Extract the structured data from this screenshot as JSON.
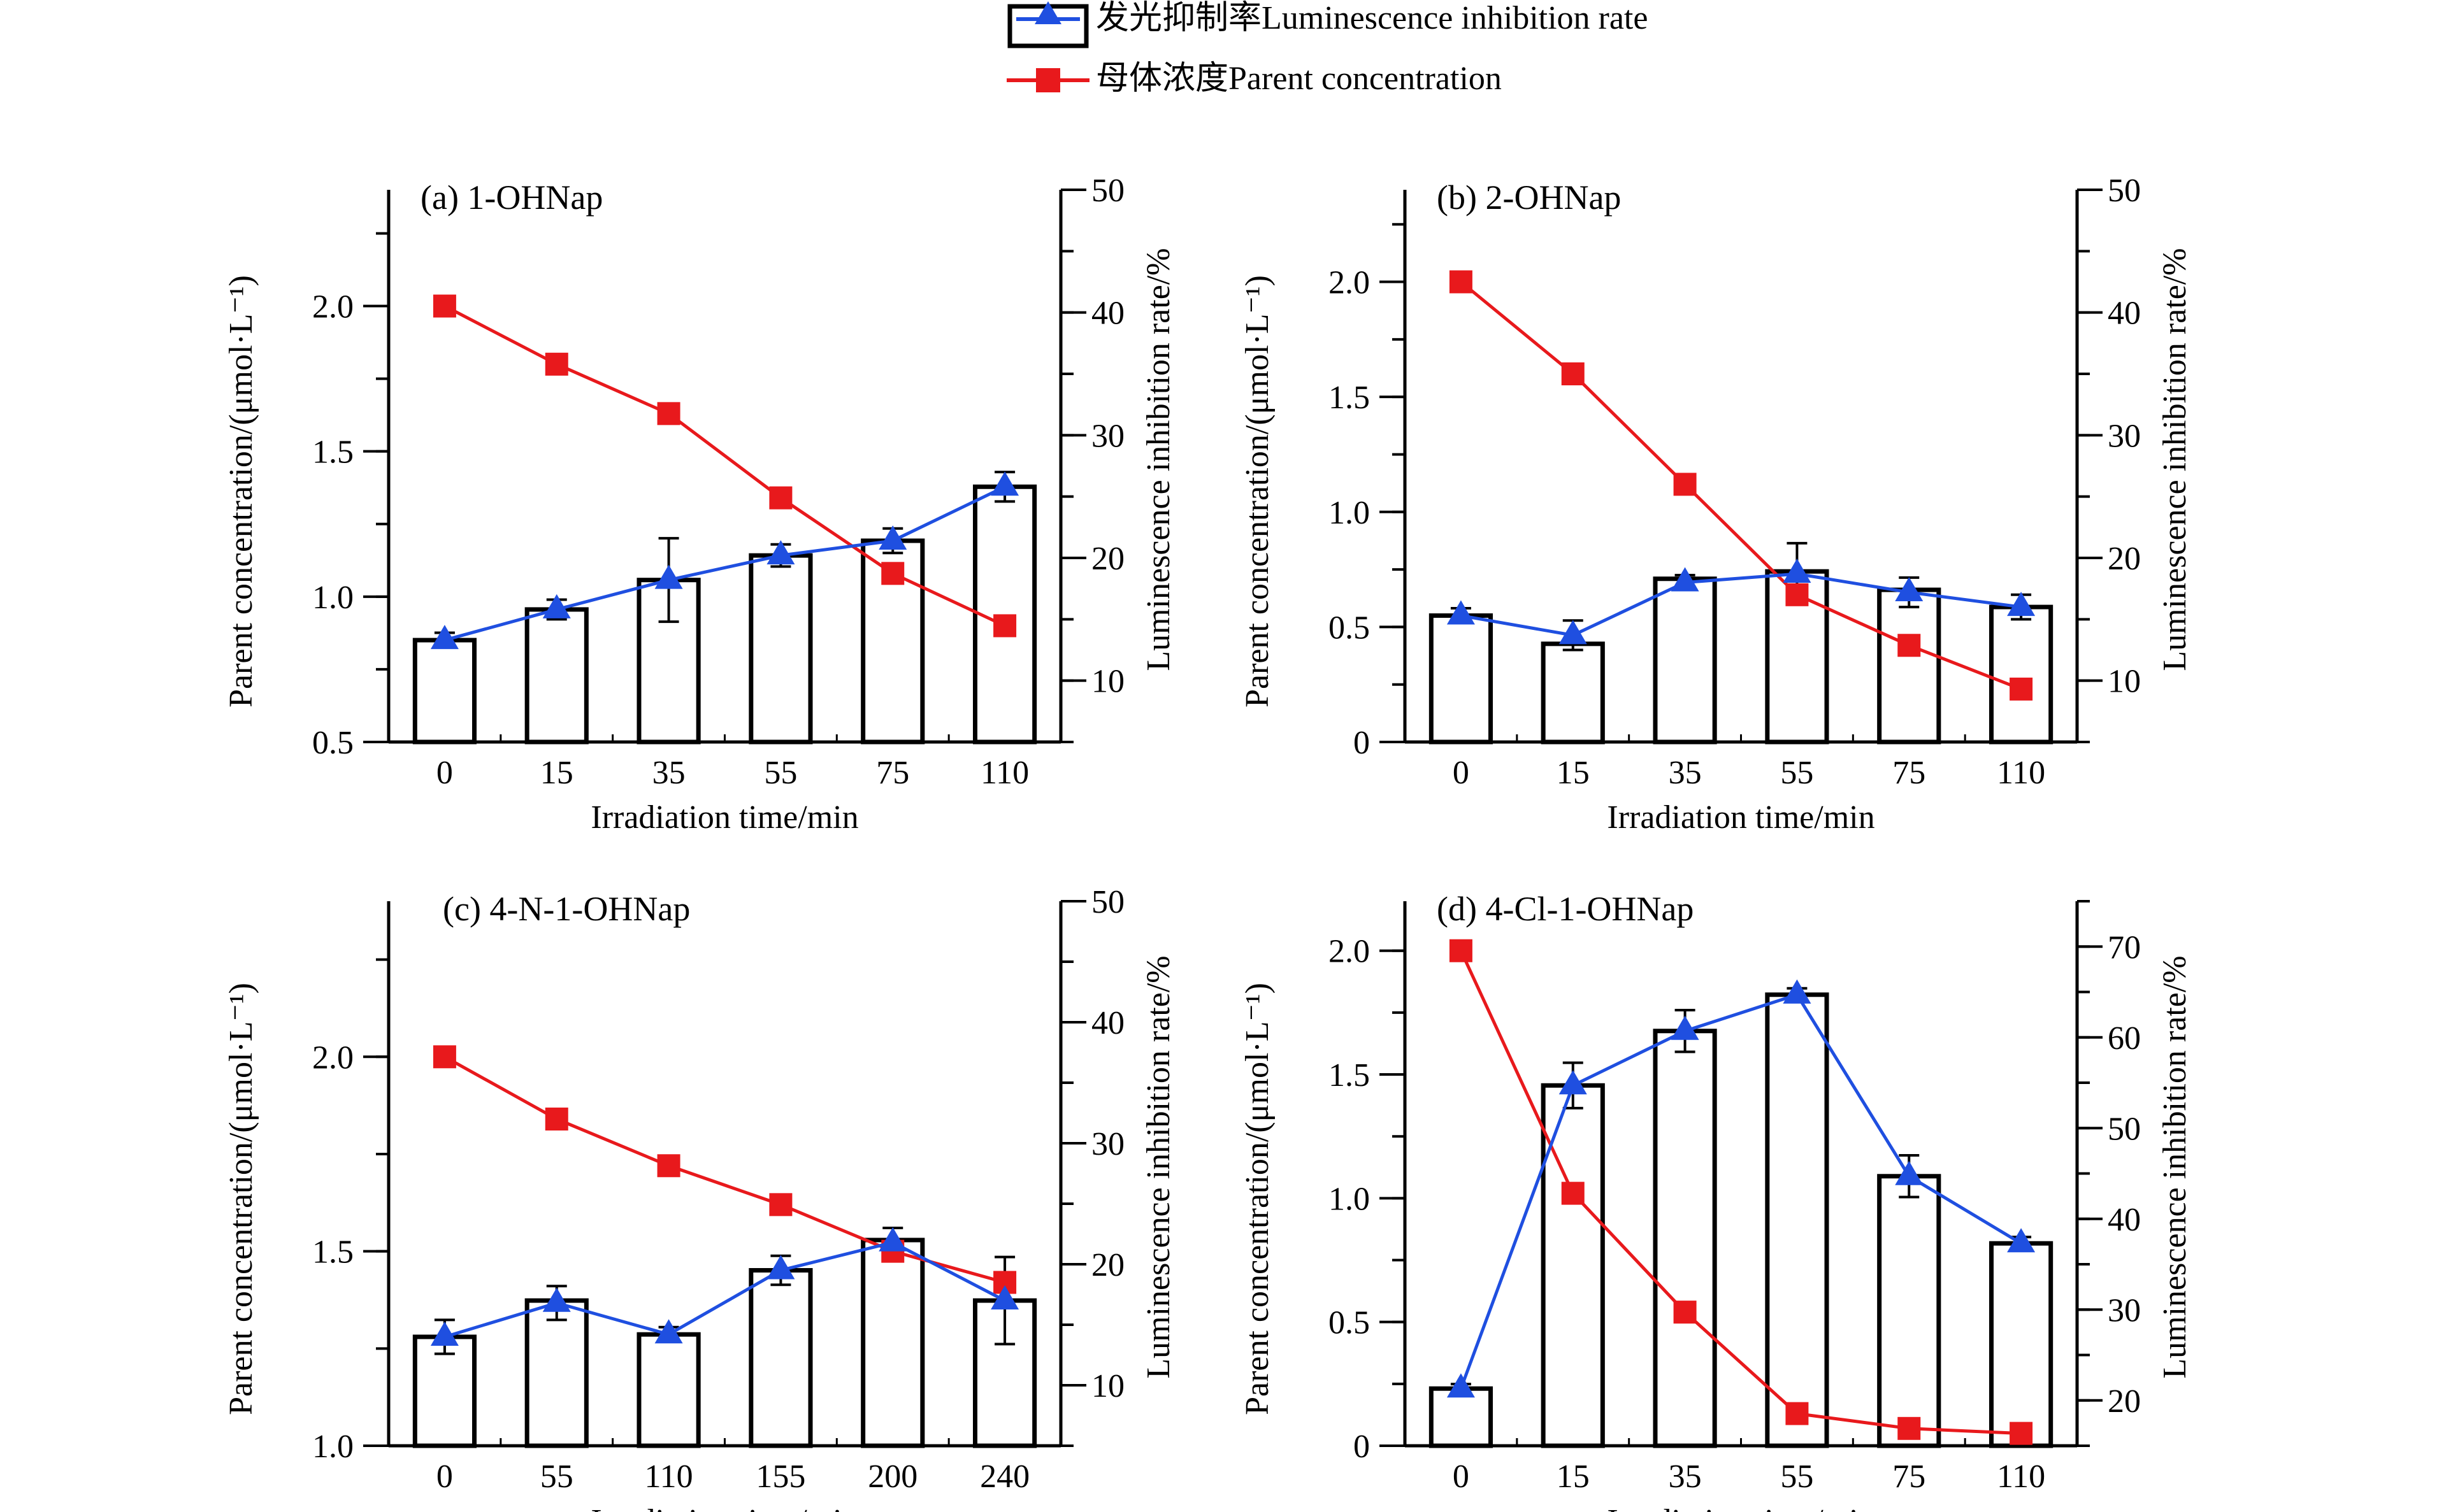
{
  "legend": {
    "luminescence_label": "发光抑制率Luminescence inhibition rate",
    "parent_label": "母体浓度Parent concentration"
  },
  "colors": {
    "luminescence": "#1f4fe0",
    "parent": "#e8191c",
    "bar_stroke": "#000000",
    "bar_fill": "#ffffff"
  },
  "chart_data": [
    {
      "type": "bar+line",
      "title": "(a) 1-OHNap",
      "xlabel": "Irradiation time/min",
      "ylabel_left": "Parent concentration/(μmol·L⁻¹)",
      "ylabel_right": "Luminescence inhibition rate/%",
      "categories": [
        "0",
        "15",
        "35",
        "55",
        "75",
        "110"
      ],
      "left_axis": {
        "min": 0.5,
        "max": 2.4,
        "ticks": [
          0.5,
          1.0,
          1.5,
          2.0
        ],
        "tick_labels": [
          "0.5",
          "1.0",
          "1.5",
          "2.0"
        ]
      },
      "right_axis": {
        "min": 5,
        "max": 50,
        "ticks": [
          10,
          20,
          30,
          40,
          50
        ],
        "tick_labels": [
          "10",
          "20",
          "30",
          "40",
          "50"
        ]
      },
      "parent_concentration": [
        2.0,
        1.8,
        1.63,
        1.34,
        1.08,
        0.9
      ],
      "luminescence_bars": [
        13.3,
        15.8,
        18.2,
        20.2,
        21.4,
        25.8
      ],
      "luminescence_line": [
        13.3,
        15.8,
        18.2,
        20.2,
        21.4,
        25.8
      ],
      "luminescence_error": [
        0.6,
        0.8,
        3.4,
        0.9,
        1.0,
        1.2
      ]
    },
    {
      "type": "bar+line",
      "title": "(b) 2-OHNap",
      "xlabel": "Irradiation time/min",
      "ylabel_left": "Parent concentration/(μmol·L⁻¹)",
      "ylabel_right": "Luminescence inhibition rate/%",
      "categories": [
        "0",
        "15",
        "35",
        "55",
        "75",
        "110"
      ],
      "left_axis": {
        "min": 0,
        "max": 2.4,
        "ticks": [
          0,
          0.5,
          1.0,
          1.5,
          2.0
        ],
        "tick_labels": [
          "0",
          "0.5",
          "1.0",
          "1.5",
          "2.0"
        ]
      },
      "right_axis": {
        "min": 5,
        "max": 50,
        "ticks": [
          10,
          20,
          30,
          40,
          50
        ],
        "tick_labels": [
          "10",
          "20",
          "30",
          "40",
          "50"
        ]
      },
      "parent_concentration": [
        2.0,
        1.6,
        1.12,
        0.64,
        0.42,
        0.23
      ],
      "luminescence_bars": [
        15.3,
        13.0,
        18.3,
        18.9,
        17.4,
        16.0
      ],
      "luminescence_line": [
        15.3,
        13.7,
        18.0,
        18.7,
        17.2,
        16.0
      ],
      "luminescence_error": [
        0.6,
        1.2,
        0.6,
        2.5,
        1.2,
        1.0
      ]
    },
    {
      "type": "bar+line",
      "title": "(c) 4-N-1-OHNap",
      "xlabel": "Irradiation time/min",
      "ylabel_left": "Parent concentration/(μmol·L⁻¹)",
      "ylabel_right": "Luminescence inhibition rate/%",
      "categories": [
        "0",
        "55",
        "110",
        "155",
        "200",
        "240"
      ],
      "left_axis": {
        "min": 1.0,
        "max": 2.4,
        "ticks": [
          1.0,
          1.5,
          2.0
        ],
        "tick_labels": [
          "1.0",
          "1.5",
          "2.0"
        ]
      },
      "right_axis": {
        "min": 5,
        "max": 50,
        "ticks": [
          10,
          20,
          30,
          40,
          50
        ],
        "tick_labels": [
          "10",
          "20",
          "30",
          "40",
          "50"
        ]
      },
      "parent_concentration": [
        2.0,
        1.84,
        1.72,
        1.62,
        1.5,
        1.42
      ],
      "luminescence_bars": [
        14.0,
        17.0,
        14.2,
        19.5,
        22.0,
        17.0
      ],
      "luminescence_line": [
        14.0,
        16.8,
        14.2,
        19.5,
        21.8,
        17.0
      ],
      "luminescence_error": [
        1.4,
        1.4,
        0.6,
        1.2,
        1.2,
        3.6
      ]
    },
    {
      "type": "bar+line",
      "title": "(d) 4-Cl-1-OHNap",
      "xlabel": "Irradiation time/min",
      "ylabel_left": "Parent concentration/(μmol·L⁻¹)",
      "ylabel_right": "Luminescence inhibition rate/%",
      "categories": [
        "0",
        "15",
        "35",
        "55",
        "75",
        "110"
      ],
      "left_axis": {
        "min": 0,
        "max": 2.2,
        "ticks": [
          0,
          0.5,
          1.0,
          1.5,
          2.0
        ],
        "tick_labels": [
          "0",
          "0.5",
          "1.0",
          "1.5",
          "2.0"
        ]
      },
      "right_axis": {
        "min": 15,
        "max": 75,
        "ticks": [
          20,
          30,
          40,
          50,
          60,
          70
        ],
        "tick_labels": [
          "20",
          "30",
          "40",
          "50",
          "60",
          "70"
        ]
      },
      "parent_concentration": [
        2.0,
        1.02,
        0.54,
        0.13,
        0.07,
        0.05
      ],
      "luminescence_bars": [
        21.3,
        54.7,
        60.7,
        64.7,
        44.7,
        37.3
      ],
      "luminescence_line": [
        21.3,
        54.7,
        60.7,
        64.7,
        44.7,
        37.3
      ],
      "luminescence_error": [
        0.5,
        2.5,
        2.3,
        0.7,
        2.3,
        0.7
      ]
    }
  ]
}
